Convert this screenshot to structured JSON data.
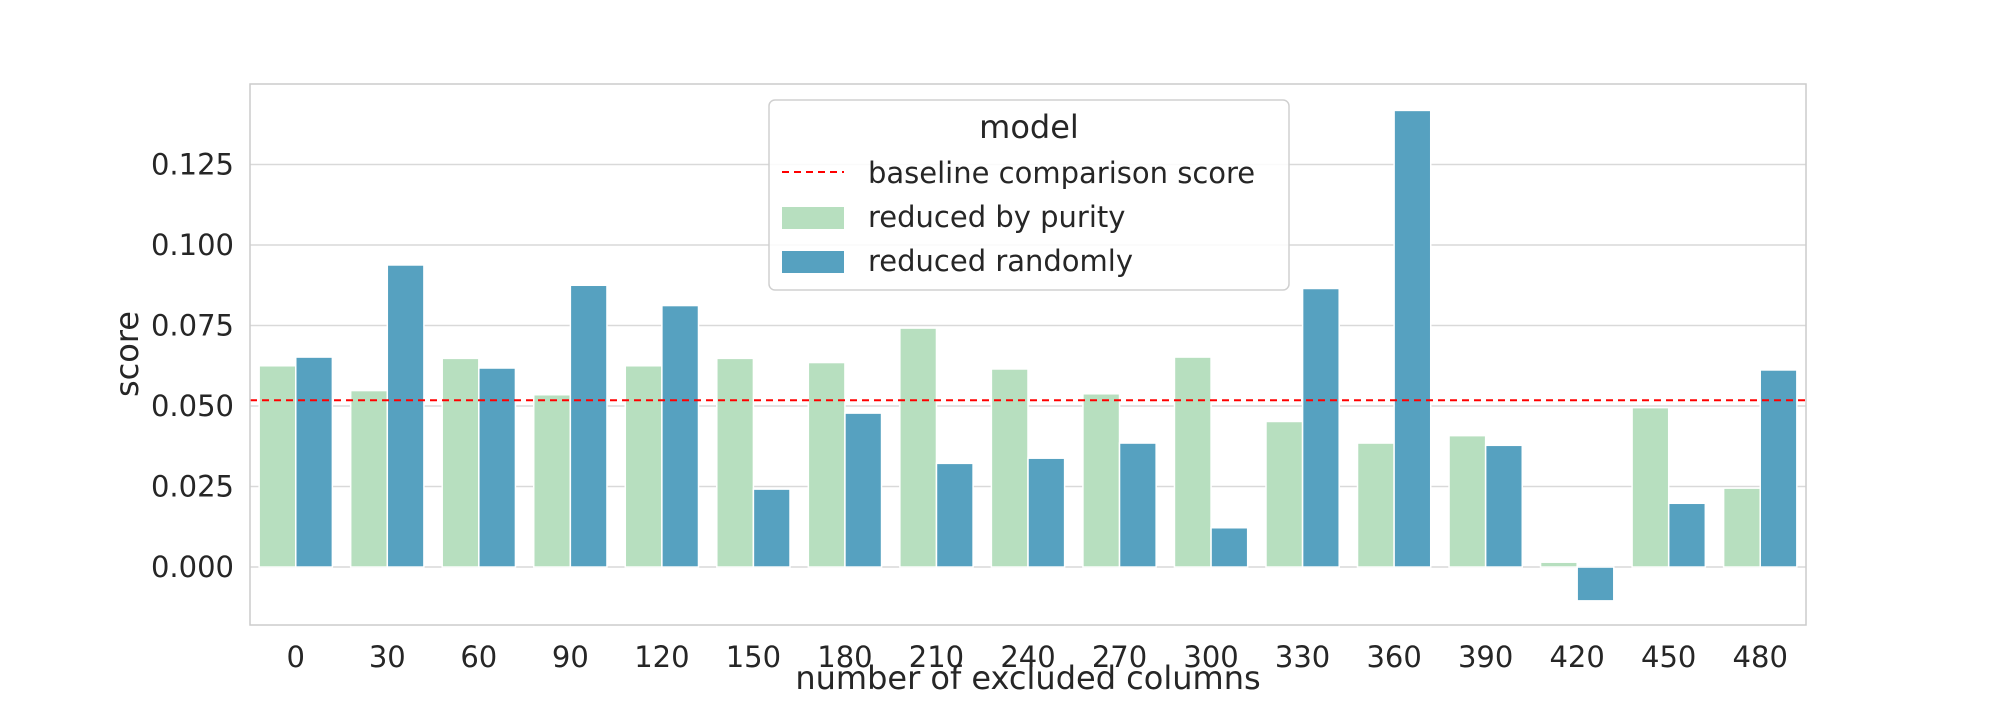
{
  "chart_data": {
    "type": "bar",
    "title": "",
    "xlabel": "number of excluded columns",
    "ylabel": "score",
    "categories": [
      "0",
      "30",
      "60",
      "90",
      "120",
      "150",
      "180",
      "210",
      "240",
      "270",
      "300",
      "330",
      "360",
      "390",
      "420",
      "450",
      "480"
    ],
    "series": [
      {
        "name": "reduced by purity",
        "color": "#b7dfbf",
        "values": [
          0.0625,
          0.0548,
          0.0648,
          0.0535,
          0.0625,
          0.0648,
          0.0635,
          0.0742,
          0.0615,
          0.0538,
          0.0652,
          0.0452,
          0.0385,
          0.0408,
          0.0015,
          0.0495,
          0.0245
        ]
      },
      {
        "name": "reduced randomly",
        "color": "#56a1c0",
        "values": [
          0.0652,
          0.0938,
          0.0618,
          0.0875,
          0.0812,
          0.0242,
          0.0478,
          0.0322,
          0.0338,
          0.0385,
          0.0122,
          0.0865,
          0.1418,
          0.0378,
          -0.0105,
          0.0198,
          0.0612
        ]
      }
    ],
    "baseline": {
      "name": "baseline comparison score",
      "value": 0.0518,
      "color": "#ff0000",
      "style": "dashed"
    },
    "ylim": [
      -0.018,
      0.15
    ],
    "yticks": [
      "0.000",
      "0.025",
      "0.050",
      "0.075",
      "0.100",
      "0.125"
    ],
    "ytick_values": [
      0.0,
      0.025,
      0.05,
      0.075,
      0.1,
      0.125
    ],
    "grid": true,
    "legend": {
      "title": "model",
      "placement": "top-center"
    }
  }
}
